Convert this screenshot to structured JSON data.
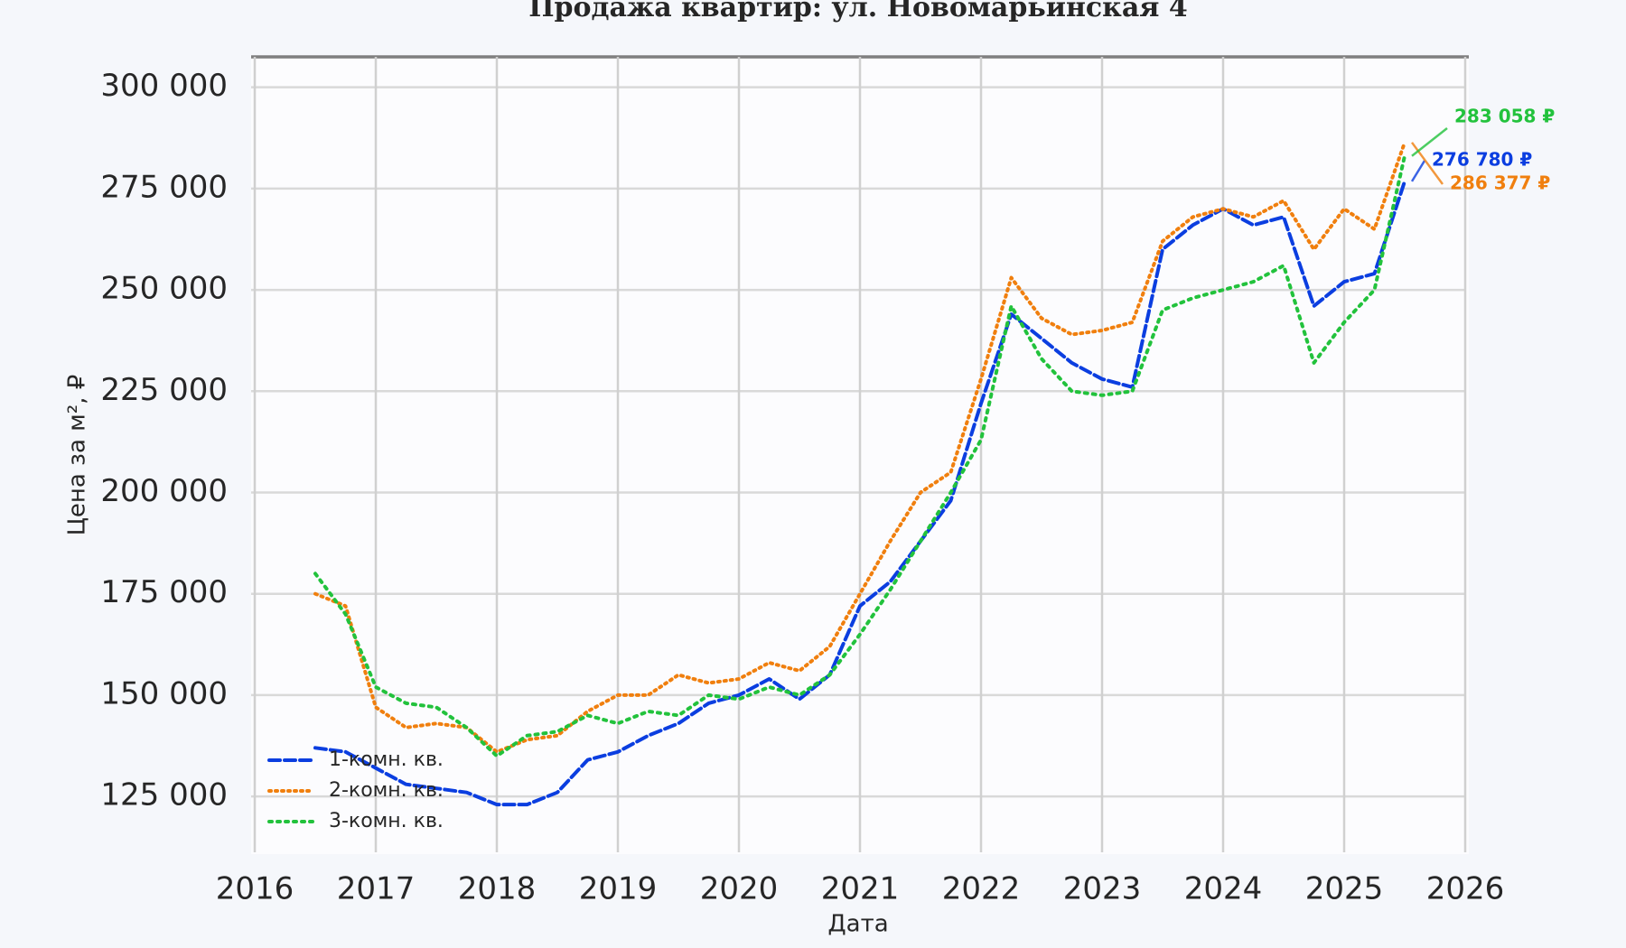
{
  "chart_data": {
    "type": "line",
    "title": "Продажа квартир: ул. Новомарьинская 4",
    "xlabel": "Дата",
    "ylabel": "Цена за м², ₽",
    "x": [
      2016.5,
      2016.75,
      2017,
      2017.25,
      2017.5,
      2017.75,
      2018,
      2018.25,
      2018.5,
      2018.75,
      2019,
      2019.25,
      2019.5,
      2019.75,
      2020,
      2020.25,
      2020.5,
      2020.75,
      2021,
      2021.25,
      2021.5,
      2021.75,
      2022,
      2022.25,
      2022.5,
      2022.75,
      2023,
      2023.25,
      2023.5,
      2023.75,
      2024,
      2024.25,
      2024.5,
      2024.75,
      2025,
      2025.25,
      2025.5
    ],
    "series": [
      {
        "name": "1-комн. кв.",
        "color": "#0b3ee0",
        "dash": "12,5",
        "values": [
          137000,
          136000,
          132000,
          128000,
          127000,
          126000,
          123000,
          123000,
          126000,
          134000,
          136000,
          140000,
          143000,
          148000,
          150000,
          154000,
          149000,
          155000,
          172000,
          178000,
          188000,
          198000,
          222000,
          244000,
          238000,
          232000,
          228000,
          226000,
          260000,
          266000,
          270000,
          266000,
          268000,
          246000,
          252000,
          254000,
          276780
        ],
        "value_labels": [
          null,
          null,
          null,
          null,
          null,
          null,
          null,
          null,
          null,
          null,
          null,
          null,
          null,
          null,
          null,
          null,
          null,
          null,
          null,
          null,
          null,
          null,
          null,
          null,
          null,
          null,
          null,
          null,
          null,
          null,
          null,
          null,
          null,
          null,
          null,
          null,
          "276 780 ₽"
        ]
      },
      {
        "name": "2-комн. кв.",
        "color": "#f07f0e",
        "dash": "2,5",
        "values": [
          175000,
          172000,
          147000,
          142000,
          143000,
          142000,
          136000,
          139000,
          140000,
          146000,
          150000,
          150000,
          155000,
          153000,
          154000,
          158000,
          156000,
          162000,
          175000,
          188000,
          200000,
          205000,
          228000,
          253000,
          243000,
          239000,
          240000,
          242000,
          262000,
          268000,
          270000,
          268000,
          272000,
          260000,
          270000,
          265000,
          286377
        ],
        "value_labels": [
          null,
          null,
          null,
          null,
          null,
          null,
          null,
          null,
          null,
          null,
          null,
          null,
          null,
          null,
          null,
          null,
          null,
          null,
          null,
          null,
          null,
          null,
          null,
          null,
          null,
          null,
          null,
          null,
          null,
          null,
          null,
          null,
          null,
          null,
          null,
          null,
          "286 377 ₽"
        ]
      },
      {
        "name": "3-комн. кв.",
        "color": "#22c23c",
        "dash": "3,6",
        "values": [
          180000,
          170000,
          152000,
          148000,
          147000,
          142000,
          135000,
          140000,
          141000,
          145000,
          143000,
          146000,
          145000,
          150000,
          149000,
          152000,
          150000,
          155000,
          165000,
          176000,
          188000,
          200000,
          213000,
          246000,
          233000,
          225000,
          224000,
          225000,
          245000,
          248000,
          250000,
          252000,
          256000,
          232000,
          242000,
          250000,
          283058
        ],
        "value_labels": [
          null,
          null,
          null,
          null,
          null,
          null,
          null,
          null,
          null,
          null,
          null,
          null,
          null,
          null,
          null,
          null,
          null,
          null,
          null,
          null,
          null,
          null,
          null,
          null,
          null,
          null,
          null,
          null,
          null,
          null,
          null,
          null,
          null,
          null,
          null,
          null,
          "283 058 ₽"
        ]
      }
    ],
    "xlim": [
      2016,
      2026
    ],
    "xticks": [
      2016,
      2017,
      2018,
      2019,
      2020,
      2021,
      2022,
      2023,
      2024,
      2025,
      2026
    ],
    "ylim": [
      113000,
      307500
    ],
    "yticks": [
      {
        "value": 125000,
        "label": "125 000"
      },
      {
        "value": 150000,
        "label": "150 000"
      },
      {
        "value": 175000,
        "label": "175 000"
      },
      {
        "value": 200000,
        "label": "200 000"
      },
      {
        "value": 225000,
        "label": "225 000"
      },
      {
        "value": 250000,
        "label": "250 000"
      },
      {
        "value": 275000,
        "label": "275 000"
      },
      {
        "value": 300000,
        "label": "300 000"
      }
    ],
    "grid": true,
    "legend": "lower-left"
  }
}
